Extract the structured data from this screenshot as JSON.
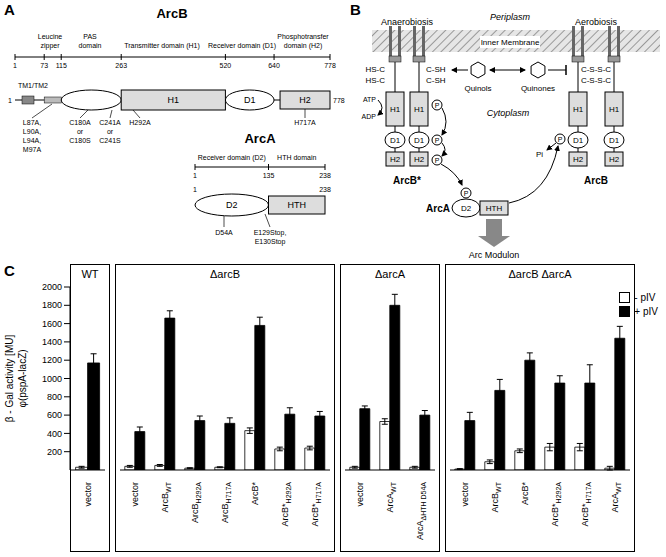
{
  "panel_a": {
    "label": "A",
    "arcb": {
      "name": "ArcB",
      "domain_labels": [
        [
          "Leucine",
          "zipper"
        ],
        [
          "PAS",
          "domain"
        ],
        [
          "Transmitter domain (H1)"
        ],
        [
          "Receiver domain (D1)"
        ],
        [
          "Phosphotransfer",
          "domain (H2)"
        ]
      ],
      "residues": [
        1,
        73,
        115,
        263,
        520,
        640,
        778
      ],
      "diagram_ends": [
        1,
        778
      ],
      "tm": "TM1/TM2",
      "boxes": {
        "h1": "H1",
        "d1": "D1",
        "h2": "H2"
      },
      "mutations": [
        [
          "L87A,",
          "L90A,",
          "L94A,",
          "M97A"
        ],
        [
          "C180A",
          "or",
          "C180S"
        ],
        [
          "C241A",
          "or",
          "C241S"
        ],
        [
          "H292A"
        ],
        [
          "H717A"
        ]
      ]
    },
    "arca": {
      "name": "ArcA",
      "domain_labels": [
        "Receiver domain (D2)",
        "HTH domain"
      ],
      "residues": [
        1,
        135,
        238
      ],
      "diagram_ends": [
        1,
        238
      ],
      "boxes": {
        "d2": "D2",
        "hth": "HTH"
      },
      "mutations": [
        [
          "D54A"
        ],
        [
          "E129Stop,",
          "E130Stop"
        ]
      ]
    }
  },
  "panel_b": {
    "label": "B",
    "periplasm": "Periplasm",
    "membrane": "Inner Membrane",
    "cytoplasm": "Cytoplasm",
    "anaerobic": "Anaerobiosis",
    "aerobic": "Aerobiosis",
    "quinols": "Quinols",
    "quinones": "Quinones",
    "reduced_left": "HS-C",
    "reduced_right": "C-SH",
    "oxidized": "C-S-S-C",
    "atp": "ATP",
    "adp": "ADP",
    "pi": "Pi",
    "phospho": "P",
    "domains": {
      "h1": "H1",
      "d1": "D1",
      "h2": "H2",
      "d2": "D2",
      "hth": "HTH"
    },
    "active_kinase": "ArcB*",
    "kinase": "ArcB",
    "regulator": "ArcA",
    "output": "Arc Modulon"
  },
  "chart_data": {
    "type": "bar",
    "panel_label": "C",
    "y_label": [
      "β - Gal activity [MU]",
      "φ(pspA-lacZ)"
    ],
    "categories": [
      "vector",
      "vector",
      "ArcB",
      "ArcB",
      "ArcB",
      "ArcB*",
      "ArcB*",
      "ArcB*",
      "vector",
      "ArcA",
      "ArcA",
      "vector",
      "ArcB",
      "ArcB*",
      "ArcB*",
      "ArcB*",
      "ArcA"
    ],
    "category_subscripts": [
      null,
      null,
      "WT",
      "H292A",
      "H717A",
      null,
      "H292A",
      "H717A",
      null,
      "WT",
      "ΔHTH D54A",
      null,
      "WT",
      null,
      "H292A",
      "H717A",
      "WT"
    ],
    "category_groups": [
      "WT",
      "ΔarcB",
      "ΔarcB",
      "ΔarcB",
      "ΔarcB",
      "ΔarcB",
      "ΔarcB",
      "ΔarcB",
      "ΔarcA",
      "ΔarcA",
      "ΔarcA",
      "ΔarcB ΔarcA",
      "ΔarcB ΔarcA",
      "ΔarcB ΔarcA",
      "ΔarcB ΔarcA",
      "ΔarcB ΔarcA",
      "ΔarcB ΔarcA"
    ],
    "series": [
      {
        "name": "- pIV",
        "color": "#ffffff",
        "values": [
          30,
          40,
          50,
          20,
          30,
          430,
          230,
          240,
          30,
          530,
          30,
          10,
          90,
          210,
          250,
          250,
          20
        ],
        "errors": [
          10,
          10,
          10,
          5,
          5,
          30,
          20,
          20,
          10,
          30,
          10,
          5,
          20,
          20,
          40,
          40,
          20
        ]
      },
      {
        "name": "+ pIV",
        "color": "#000000",
        "values": [
          1170,
          420,
          1660,
          540,
          510,
          1580,
          610,
          590,
          670,
          1800,
          600,
          540,
          870,
          1200,
          950,
          950,
          1440
        ],
        "errors": [
          100,
          50,
          80,
          50,
          60,
          90,
          70,
          50,
          30,
          120,
          50,
          90,
          120,
          80,
          80,
          200,
          130
        ]
      }
    ],
    "ylim": [
      0,
      2000
    ],
    "yticks": [
      200,
      400,
      600,
      800,
      1000,
      1200,
      1400,
      1600,
      1800,
      2000
    ],
    "legend": "upper right"
  }
}
